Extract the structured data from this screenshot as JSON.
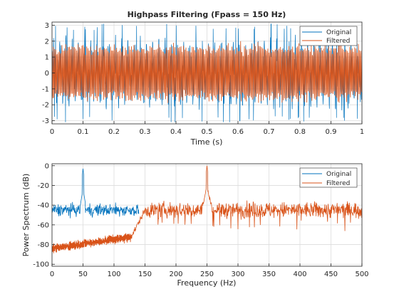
{
  "chart_data": [
    {
      "type": "line",
      "title": "Highpass Filtering  (Fpass = 150 Hz)",
      "xlabel": "Time (s)",
      "ylabel": "",
      "xlim": [
        0,
        1
      ],
      "ylim": [
        -3.2,
        3.2
      ],
      "xticks": [
        "0",
        "0.1",
        "0.2",
        "0.3",
        "0.4",
        "0.5",
        "0.6",
        "0.7",
        "0.8",
        "0.9",
        "1"
      ],
      "yticks": [
        "-3",
        "-2",
        "-1",
        "0",
        "1",
        "2",
        "3"
      ],
      "grid": true,
      "legend_position": "top-right",
      "series": [
        {
          "name": "Original",
          "color": "#0072BD",
          "description_values": {
            "envelope_min": -3.1,
            "envelope_max": 3.1,
            "typical_range": [
              -2.6,
              2.6
            ]
          }
        },
        {
          "name": "Filtered",
          "color": "#D95319",
          "description_values": {
            "envelope_min": -2.0,
            "envelope_max": 2.0,
            "typical_range": [
              -2.0,
              2.0
            ]
          }
        }
      ]
    },
    {
      "type": "line",
      "title": "",
      "xlabel": "Frequency (Hz)",
      "ylabel": "Power Spectrum (dB)",
      "xlim": [
        0,
        500
      ],
      "ylim": [
        -102,
        2
      ],
      "xticks": [
        "0",
        "50",
        "100",
        "150",
        "200",
        "250",
        "300",
        "350",
        "400",
        "450",
        "500"
      ],
      "yticks": [
        "-100",
        "-80",
        "-60",
        "-40",
        "-20",
        "0"
      ],
      "grid": true,
      "legend_position": "top-right",
      "series": [
        {
          "name": "Original",
          "color": "#0072BD",
          "spectrum": {
            "noise_floor_db": -45,
            "noise_spread_db": 6,
            "peaks": [
              {
                "x": 50,
                "y": -3
              },
              {
                "x": 250,
                "y": 0
              }
            ],
            "extends_to_hz": 140
          }
        },
        {
          "name": "Filtered",
          "color": "#D95319",
          "spectrum": {
            "stopband": {
              "from_hz": 0,
              "to_hz": 128,
              "level_start_db": -84,
              "level_end_db": -72
            },
            "passband_floor_db": -45,
            "passband_spread_db": 8,
            "peaks": [
              {
                "x": 250,
                "y": 0
              }
            ]
          }
        }
      ]
    }
  ]
}
